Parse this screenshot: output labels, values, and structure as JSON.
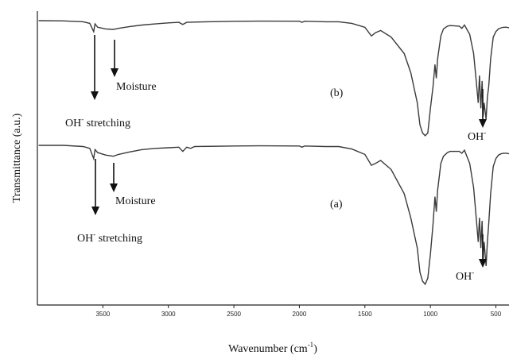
{
  "chart_data": {
    "type": "line",
    "xlabel": "Wavenumber (cm",
    "xlabel_sup": "-1",
    "xlabel_suffix": ")",
    "ylabel": "Transmittance (a.u.)",
    "xlim": [
      4000,
      400
    ],
    "x_reversed": true,
    "ticks": [
      3500,
      3000,
      2500,
      2000,
      1500,
      1000,
      500
    ],
    "series": [
      {
        "name": "(b)",
        "points": [
          [
            3990,
            0.0
          ],
          [
            3800,
            0.005
          ],
          [
            3650,
            0.02
          ],
          [
            3600,
            0.05
          ],
          [
            3570,
            0.2
          ],
          [
            3560,
            0.06
          ],
          [
            3540,
            0.12
          ],
          [
            3480,
            0.15
          ],
          [
            3420,
            0.16
          ],
          [
            3380,
            0.14
          ],
          [
            3300,
            0.11
          ],
          [
            3200,
            0.08
          ],
          [
            3100,
            0.06
          ],
          [
            3000,
            0.04
          ],
          [
            2920,
            0.03
          ],
          [
            2890,
            0.07
          ],
          [
            2860,
            0.03
          ],
          [
            2700,
            0.02
          ],
          [
            2500,
            0.012
          ],
          [
            2300,
            0.008
          ],
          [
            2000,
            0.01
          ],
          [
            1980,
            0.03
          ],
          [
            1960,
            0.01
          ],
          [
            1800,
            0.02
          ],
          [
            1700,
            0.02
          ],
          [
            1600,
            0.05
          ],
          [
            1500,
            0.12
          ],
          [
            1450,
            0.28
          ],
          [
            1420,
            0.22
          ],
          [
            1380,
            0.18
          ],
          [
            1300,
            0.3
          ],
          [
            1200,
            0.6
          ],
          [
            1150,
            0.95
          ],
          [
            1100,
            1.5
          ],
          [
            1080,
            1.9
          ],
          [
            1060,
            2.05
          ],
          [
            1040,
            2.1
          ],
          [
            1020,
            2.05
          ],
          [
            1000,
            1.6
          ],
          [
            980,
            1.2
          ],
          [
            965,
            0.8
          ],
          [
            955,
            1.05
          ],
          [
            945,
            0.7
          ],
          [
            920,
            0.28
          ],
          [
            900,
            0.15
          ],
          [
            870,
            0.1
          ],
          [
            850,
            0.09
          ],
          [
            780,
            0.1
          ],
          [
            760,
            0.14
          ],
          [
            740,
            0.08
          ],
          [
            700,
            0.25
          ],
          [
            670,
            0.6
          ],
          [
            650,
            1.1
          ],
          [
            635,
            1.5
          ],
          [
            625,
            1.0
          ],
          [
            615,
            1.6
          ],
          [
            605,
            1.1
          ],
          [
            598,
            1.75
          ],
          [
            590,
            1.5
          ],
          [
            575,
            1.8
          ],
          [
            565,
            1.4
          ],
          [
            555,
            1.2
          ],
          [
            540,
            0.7
          ],
          [
            520,
            0.3
          ],
          [
            500,
            0.2
          ],
          [
            480,
            0.15
          ],
          [
            460,
            0.13
          ],
          [
            440,
            0.12
          ],
          [
            420,
            0.12
          ],
          [
            400,
            0.13
          ]
        ]
      },
      {
        "name": "(a)",
        "points": [
          [
            3990,
            0.0
          ],
          [
            3800,
            0.0
          ],
          [
            3650,
            0.02
          ],
          [
            3600,
            0.05
          ],
          [
            3570,
            0.22
          ],
          [
            3560,
            0.07
          ],
          [
            3540,
            0.12
          ],
          [
            3480,
            0.16
          ],
          [
            3420,
            0.18
          ],
          [
            3380,
            0.15
          ],
          [
            3300,
            0.11
          ],
          [
            3200,
            0.07
          ],
          [
            3100,
            0.05
          ],
          [
            3000,
            0.04
          ],
          [
            2920,
            0.03
          ],
          [
            2890,
            0.1
          ],
          [
            2860,
            0.03
          ],
          [
            2830,
            0.05
          ],
          [
            2800,
            0.02
          ],
          [
            2500,
            0.01
          ],
          [
            2300,
            0.008
          ],
          [
            2000,
            0.01
          ],
          [
            1980,
            0.03
          ],
          [
            1960,
            0.01
          ],
          [
            1800,
            0.02
          ],
          [
            1700,
            0.02
          ],
          [
            1600,
            0.06
          ],
          [
            1500,
            0.15
          ],
          [
            1450,
            0.33
          ],
          [
            1420,
            0.3
          ],
          [
            1380,
            0.25
          ],
          [
            1300,
            0.4
          ],
          [
            1200,
            0.8
          ],
          [
            1150,
            1.2
          ],
          [
            1100,
            1.7
          ],
          [
            1080,
            2.1
          ],
          [
            1060,
            2.25
          ],
          [
            1040,
            2.3
          ],
          [
            1020,
            2.2
          ],
          [
            1000,
            1.8
          ],
          [
            980,
            1.3
          ],
          [
            965,
            0.85
          ],
          [
            955,
            1.1
          ],
          [
            945,
            0.75
          ],
          [
            920,
            0.3
          ],
          [
            900,
            0.18
          ],
          [
            870,
            0.12
          ],
          [
            850,
            0.1
          ],
          [
            780,
            0.1
          ],
          [
            760,
            0.13
          ],
          [
            740,
            0.08
          ],
          [
            700,
            0.3
          ],
          [
            670,
            0.7
          ],
          [
            650,
            1.2
          ],
          [
            635,
            1.6
          ],
          [
            625,
            1.2
          ],
          [
            615,
            1.7
          ],
          [
            605,
            1.25
          ],
          [
            598,
            1.9
          ],
          [
            590,
            1.6
          ],
          [
            575,
            2.0
          ],
          [
            565,
            1.6
          ],
          [
            555,
            1.3
          ],
          [
            540,
            0.8
          ],
          [
            520,
            0.35
          ],
          [
            500,
            0.22
          ],
          [
            480,
            0.16
          ],
          [
            460,
            0.14
          ],
          [
            440,
            0.13
          ],
          [
            420,
            0.13
          ],
          [
            400,
            0.14
          ]
        ]
      }
    ],
    "annotations": {
      "b": {
        "label": "(b)",
        "moisture": "Moisture",
        "oh_stretch": "OH",
        "oh_stretch_suffix": " stretching",
        "oh_bend": "OH"
      },
      "a": {
        "label": "(a)",
        "moisture": "Moisture",
        "oh_stretch": "OH",
        "oh_stretch_suffix": " stretching",
        "oh_bend": "OH"
      },
      "superscript_minus": "-"
    }
  }
}
